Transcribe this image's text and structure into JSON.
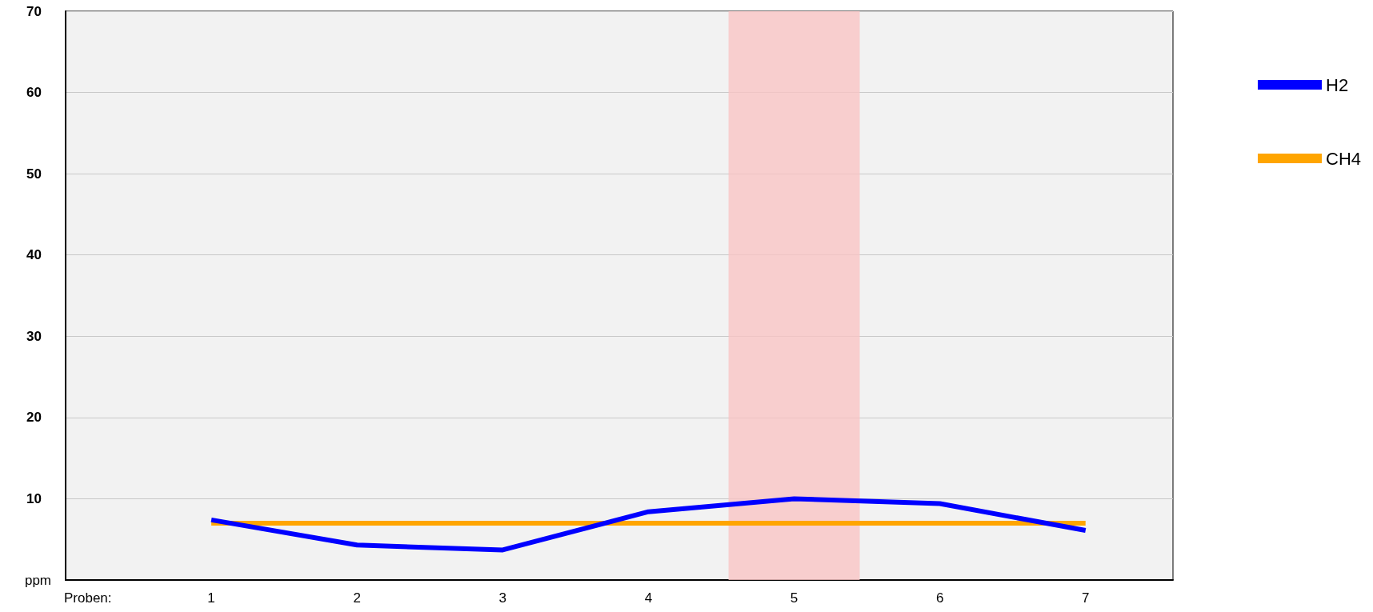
{
  "chart_data": {
    "type": "line",
    "xlabel": "Proben:",
    "ylabel": "ppm",
    "x": [
      1,
      2,
      3,
      4,
      5,
      6,
      7
    ],
    "series": [
      {
        "name": "H2",
        "color": "#0000ff",
        "values": [
          7.4,
          4.3,
          3.7,
          8.4,
          10,
          9.4,
          6.1
        ]
      },
      {
        "name": "CH4",
        "color": "#ffa500",
        "values": [
          7,
          7,
          7,
          7,
          7,
          7,
          7
        ]
      }
    ],
    "xlim": [
      0,
      7.6
    ],
    "xticks": [
      1,
      2,
      3,
      4,
      5,
      6,
      7
    ],
    "ylim": [
      0,
      70
    ],
    "yticks": [
      10,
      20,
      30,
      40,
      50,
      60,
      70
    ],
    "bands": [
      {
        "axis": "x",
        "from": 4.55,
        "to": 5.45,
        "color": "#f9c4c4"
      }
    ],
    "grid": "y",
    "legend": "top right",
    "line_style": "solid"
  }
}
